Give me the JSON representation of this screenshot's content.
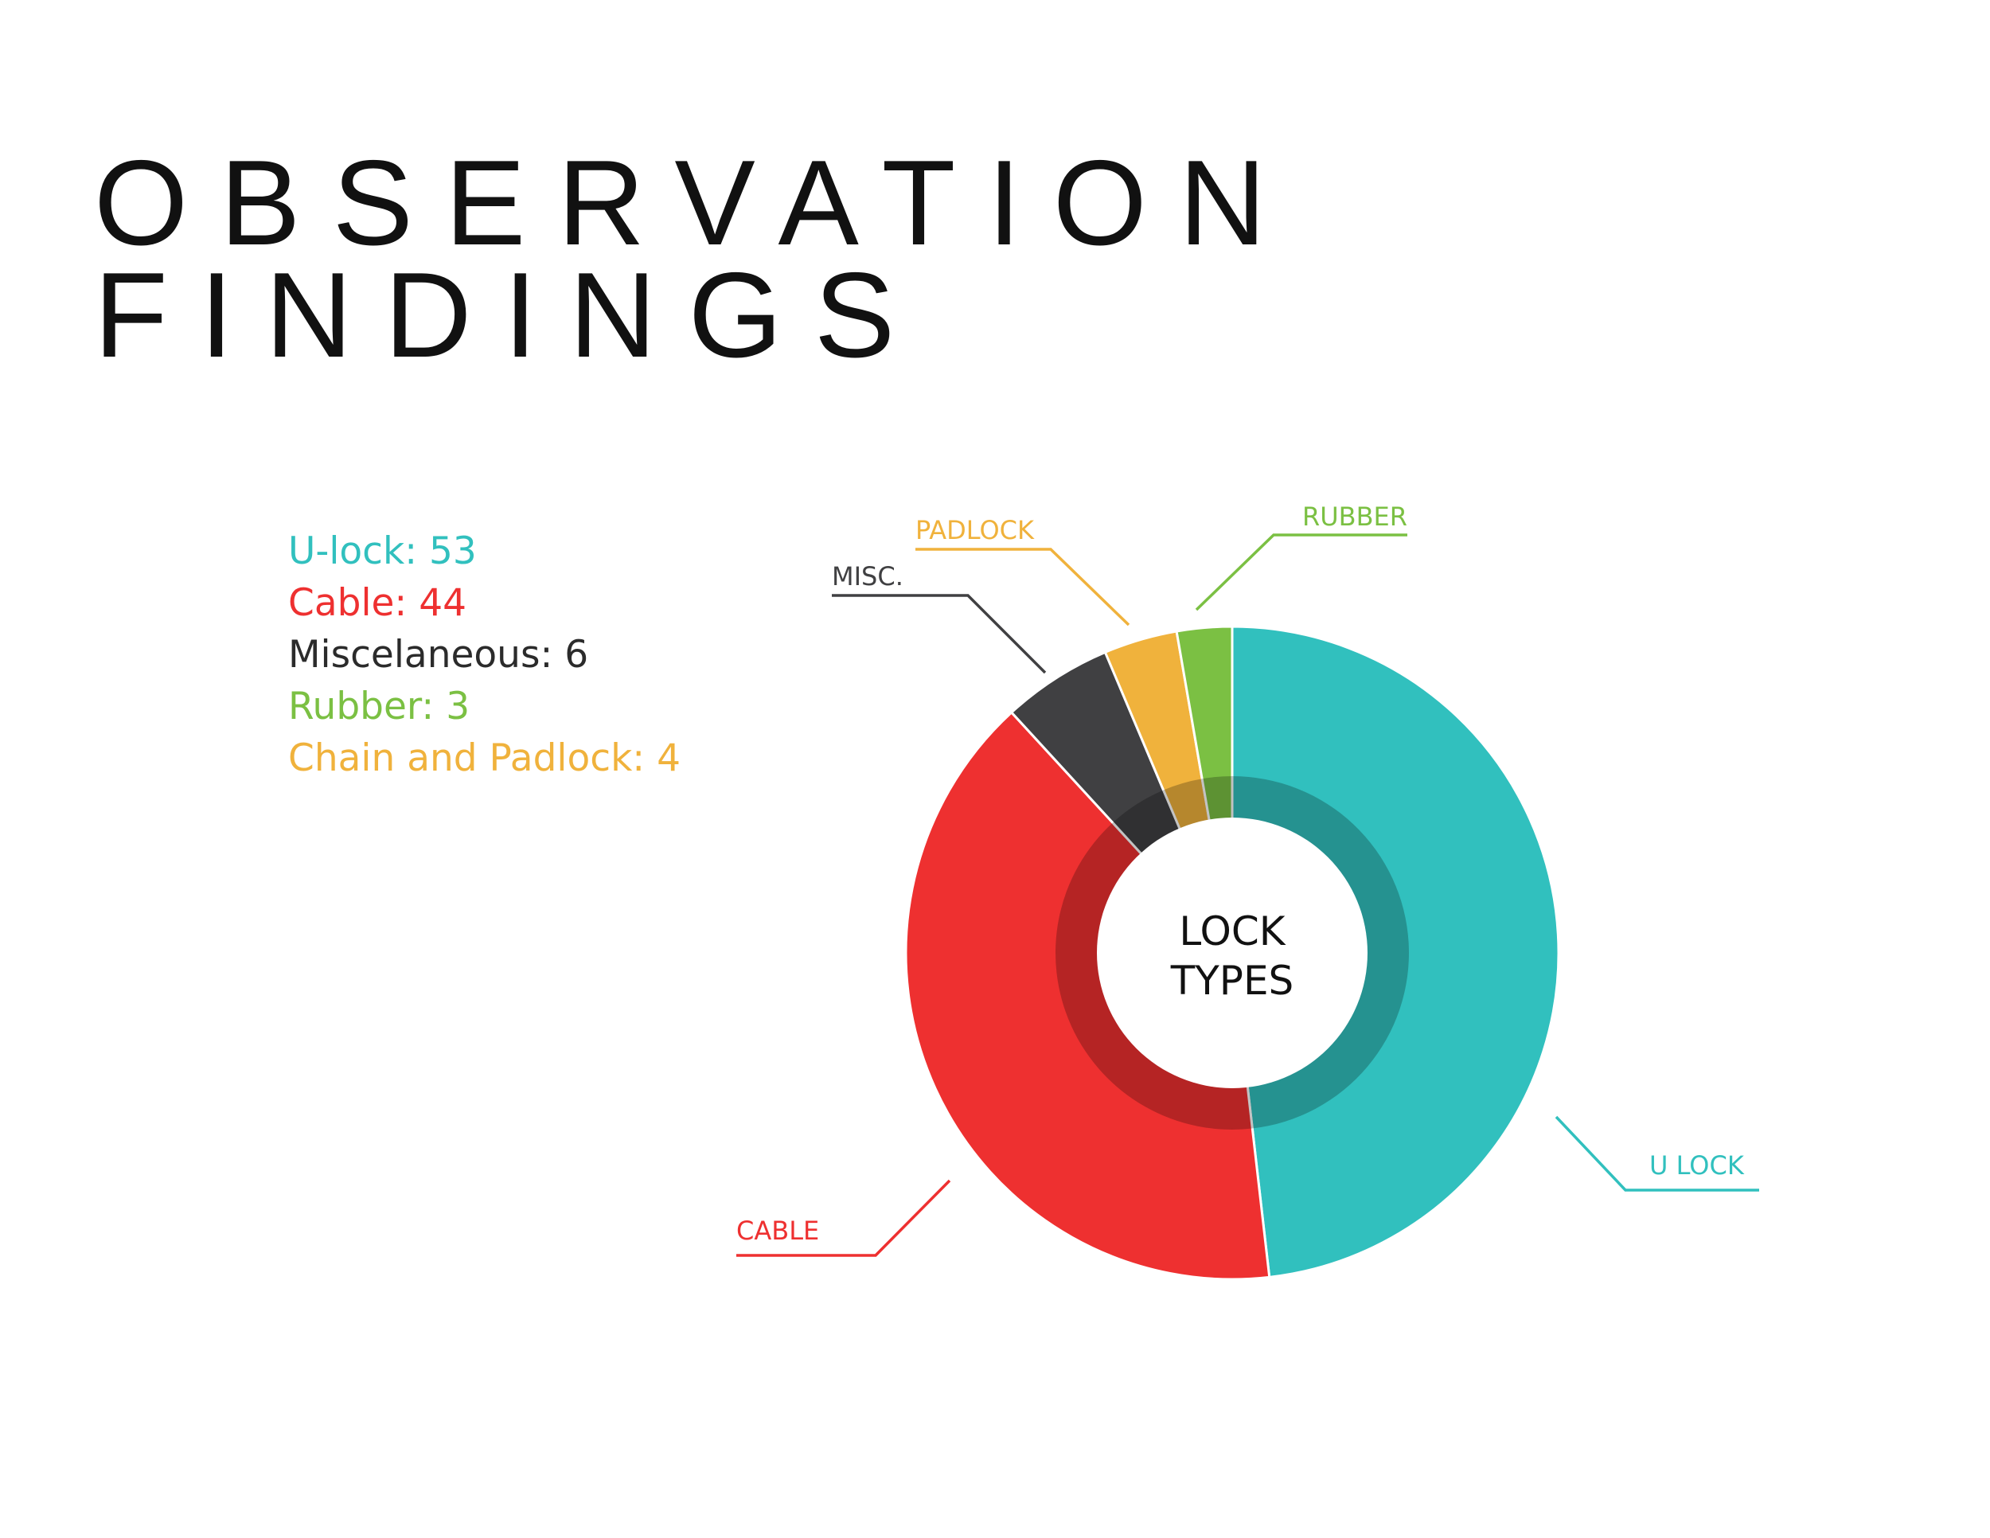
{
  "title": {
    "line1": "OBSERVATION",
    "line2": "FINDINGS"
  },
  "legend": [
    {
      "text": "U-lock: 53",
      "color": "#31c0be"
    },
    {
      "text": "Cable: 44",
      "color": "#ee3030"
    },
    {
      "text": "Miscelaneous: 6",
      "color": "#2b2b2b"
    },
    {
      "text": "Rubber: 3",
      "color": "#7bc043"
    },
    {
      "text": "Chain and Padlock: 4",
      "color": "#f0b23c"
    }
  ],
  "chart_data": {
    "type": "pie",
    "center_label": [
      "LOCK",
      "TYPES"
    ],
    "slices": [
      {
        "label": "U LOCK",
        "value": 53,
        "color": "#31c0be"
      },
      {
        "label": "CABLE",
        "value": 44,
        "color": "#ee3030"
      },
      {
        "label": "MISC.",
        "value": 6,
        "color": "#404042"
      },
      {
        "label": "PADLOCK",
        "value": 4,
        "color": "#f0b23c"
      },
      {
        "label": "RUBBER",
        "value": 3,
        "color": "#7bc043"
      }
    ]
  }
}
